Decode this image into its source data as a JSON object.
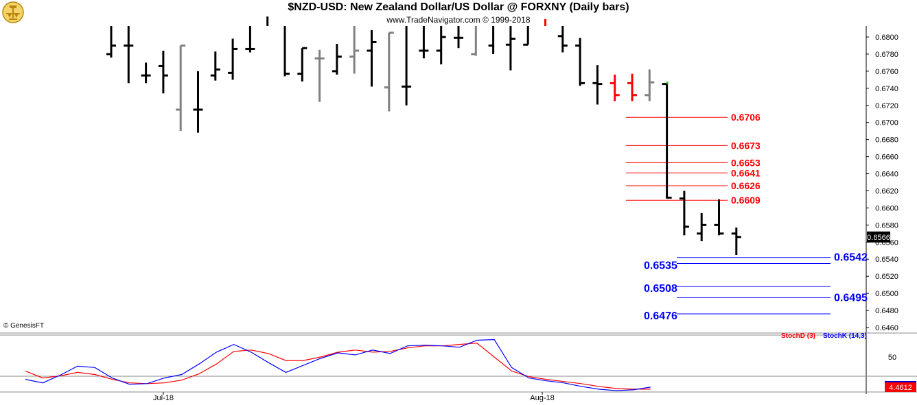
{
  "header": {
    "title": "$NZD-USD:  New Zealand Dollar/US Dollar @ FORXNY  (Daily bars)",
    "subtitle": "www.TradeNavigator.com © 1999-2018"
  },
  "copyright": "© GenesisFT",
  "colors": {
    "up_bar": "#000000",
    "neutral_bar": "#808080",
    "down_bar": "#ff0000",
    "resistance": "#ff0000",
    "support": "#0000ff",
    "stochD": "#ff0000",
    "stochK": "#0000ff"
  },
  "chart_data": [
    {
      "type": "ohlc",
      "title": "$NZD-USD:  New Zealand Dollar/US Dollar @ FORXNY  (Daily bars)",
      "ylim": [
        0.646,
        0.6828
      ],
      "yticks": [
        "0.6460",
        "0.6480",
        "0.6500",
        "0.6520",
        "0.6540",
        "0.6560",
        "0.6580",
        "0.6600",
        "0.6620",
        "0.6640",
        "0.6660",
        "0.6680",
        "0.6700",
        "0.6720",
        "0.6740",
        "0.6760",
        "0.6780",
        "0.6800"
      ],
      "last_price": "0.6566",
      "xtick_labels": [
        {
          "label": "Jul-18",
          "bar": 8
        },
        {
          "label": "Aug-18",
          "bar": 30
        }
      ],
      "bars": [
        {
          "o": 0.678,
          "h": 0.6828,
          "l": 0.6776,
          "c": 0.679,
          "color": "black"
        },
        {
          "o": 0.679,
          "h": 0.6828,
          "l": 0.6746,
          "c": 0.679,
          "color": "black"
        },
        {
          "o": 0.6755,
          "h": 0.677,
          "l": 0.6746,
          "c": 0.6755,
          "color": "black"
        },
        {
          "o": 0.6766,
          "h": 0.6784,
          "l": 0.6734,
          "c": 0.6755,
          "color": "black"
        },
        {
          "o": 0.6715,
          "h": 0.679,
          "l": 0.669,
          "c": 0.679,
          "color": "gray"
        },
        {
          "o": 0.6715,
          "h": 0.676,
          "l": 0.6688,
          "c": 0.6715,
          "color": "black"
        },
        {
          "o": 0.6755,
          "h": 0.6783,
          "l": 0.6749,
          "c": 0.6762,
          "color": "black"
        },
        {
          "o": 0.6758,
          "h": 0.6798,
          "l": 0.675,
          "c": 0.6786,
          "color": "black"
        },
        {
          "o": 0.6786,
          "h": 0.6828,
          "l": 0.6782,
          "c": 0.6786,
          "color": "black"
        },
        {
          "o": 0.6828,
          "h": 0.6828,
          "l": 0.6824,
          "c": 0.6824,
          "color": "black"
        },
        {
          "o": 0.6828,
          "h": 0.6828,
          "l": 0.6754,
          "c": 0.6757,
          "color": "black"
        },
        {
          "o": 0.6757,
          "h": 0.6787,
          "l": 0.6748,
          "c": 0.6787,
          "color": "black"
        },
        {
          "o": 0.6775,
          "h": 0.6785,
          "l": 0.6724,
          "c": 0.6775,
          "color": "gray"
        },
        {
          "o": 0.676,
          "h": 0.6792,
          "l": 0.6756,
          "c": 0.6777,
          "color": "black"
        },
        {
          "o": 0.6777,
          "h": 0.6828,
          "l": 0.6757,
          "c": 0.6784,
          "color": "gray"
        },
        {
          "o": 0.6784,
          "h": 0.6808,
          "l": 0.6742,
          "c": 0.6794,
          "color": "black"
        },
        {
          "o": 0.6741,
          "h": 0.6805,
          "l": 0.6713,
          "c": 0.6805,
          "color": "gray"
        },
        {
          "o": 0.6742,
          "h": 0.6828,
          "l": 0.672,
          "c": 0.6742,
          "color": "black"
        },
        {
          "o": 0.6784,
          "h": 0.6828,
          "l": 0.6775,
          "c": 0.6784,
          "color": "black"
        },
        {
          "o": 0.6784,
          "h": 0.6828,
          "l": 0.6768,
          "c": 0.68,
          "color": "black"
        },
        {
          "o": 0.6799,
          "h": 0.6828,
          "l": 0.6787,
          "c": 0.6799,
          "color": "black"
        },
        {
          "o": 0.678,
          "h": 0.6828,
          "l": 0.6778,
          "c": 0.6828,
          "color": "gray"
        },
        {
          "o": 0.679,
          "h": 0.6828,
          "l": 0.678,
          "c": 0.6828,
          "color": "black"
        },
        {
          "o": 0.6791,
          "h": 0.6828,
          "l": 0.6761,
          "c": 0.6798,
          "color": "black"
        },
        {
          "o": 0.6791,
          "h": 0.6828,
          "l": 0.6791,
          "c": 0.6828,
          "color": "black"
        },
        {
          "o": 0.6828,
          "h": 0.6828,
          "l": 0.6821,
          "c": 0.6828,
          "color": "red"
        },
        {
          "o": 0.6801,
          "h": 0.6828,
          "l": 0.6782,
          "c": 0.679,
          "color": "black"
        },
        {
          "o": 0.679,
          "h": 0.6799,
          "l": 0.6743,
          "c": 0.6746,
          "color": "black"
        },
        {
          "o": 0.6746,
          "h": 0.6767,
          "l": 0.6721,
          "c": 0.6745,
          "color": "black"
        },
        {
          "o": 0.6746,
          "h": 0.6756,
          "l": 0.6725,
          "c": 0.6732,
          "color": "red"
        },
        {
          "o": 0.6746,
          "h": 0.6757,
          "l": 0.6725,
          "c": 0.6732,
          "color": "red"
        },
        {
          "o": 0.6732,
          "h": 0.6762,
          "l": 0.6725,
          "c": 0.6747,
          "color": "gray"
        },
        {
          "o": 0.6745,
          "h": 0.6745,
          "l": 0.6611,
          "c": 0.6612,
          "color": "black"
        },
        {
          "o": 0.6611,
          "h": 0.662,
          "l": 0.6568,
          "c": 0.6578,
          "color": "black"
        },
        {
          "o": 0.657,
          "h": 0.6594,
          "l": 0.6561,
          "c": 0.658,
          "color": "black"
        },
        {
          "o": 0.658,
          "h": 0.661,
          "l": 0.6568,
          "c": 0.657,
          "color": "black"
        },
        {
          "o": 0.657,
          "h": 0.6577,
          "l": 0.6545,
          "c": 0.6566,
          "color": "black"
        }
      ],
      "resistance_levels": [
        "0.6706",
        "0.6673",
        "0.6653",
        "0.6641",
        "0.6626",
        "0.6609"
      ],
      "support_levels": [
        {
          "value": "0.6542",
          "side": "right"
        },
        {
          "value": "0.6535",
          "side": "left"
        },
        {
          "value": "0.6508",
          "side": "left"
        },
        {
          "value": "0.6495",
          "side": "right"
        },
        {
          "value": "0.6476",
          "side": "left"
        }
      ]
    },
    {
      "type": "line",
      "title": "",
      "ylim": [
        0,
        100
      ],
      "yticks": [
        "50"
      ],
      "legend": [
        "StochD (3)",
        "StochK (14,3)"
      ],
      "last_value": "4.4612",
      "series": [
        {
          "name": "StochD (3)",
          "color": "#ff0000",
          "values": [
            30,
            20,
            23,
            28,
            25,
            18,
            13,
            12,
            13,
            17,
            26,
            40,
            58,
            60,
            55,
            45,
            45,
            50,
            57,
            60,
            57,
            58,
            63,
            66,
            66,
            68,
            70,
            50,
            30,
            22,
            18,
            15,
            12,
            8,
            5,
            4,
            4
          ]
        },
        {
          "name": "StochK (14,3)",
          "color": "#0000ff",
          "values": [
            18,
            13,
            24,
            37,
            35,
            20,
            11,
            12,
            20,
            25,
            40,
            57,
            68,
            57,
            42,
            28,
            38,
            48,
            56,
            53,
            60,
            55,
            66,
            67,
            66,
            64,
            74,
            75,
            35,
            20,
            16,
            13,
            8,
            4,
            2,
            3,
            7
          ]
        }
      ]
    }
  ]
}
